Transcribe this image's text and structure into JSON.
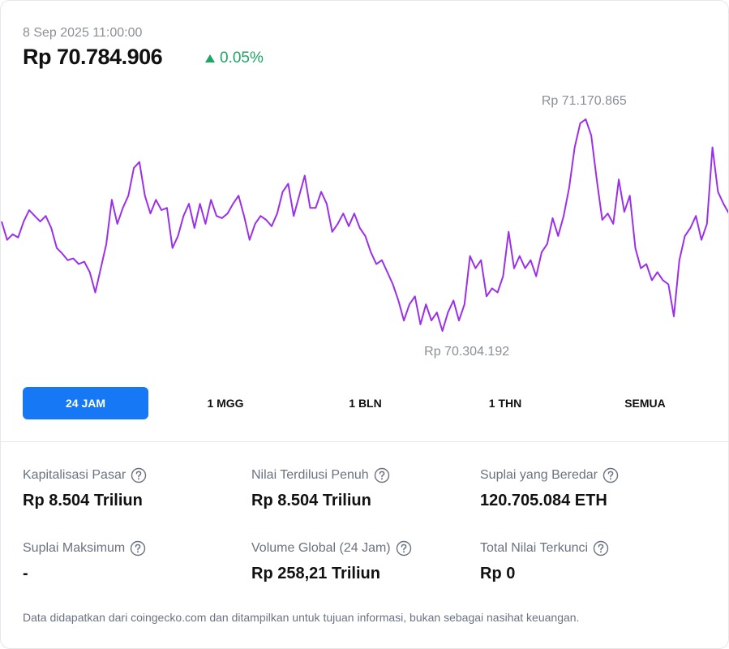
{
  "header": {
    "timestamp": "8 Sep 2025 11:00:00",
    "price": "Rp 70.784.906",
    "change": "0.05%"
  },
  "chart_data": {
    "type": "line",
    "color": "#9b30ea",
    "max_label": "Rp 71.170.865",
    "min_label": "Rp 70.304.192",
    "values": [
      70752000,
      70677000,
      70700000,
      70687000,
      70752000,
      70799000,
      70775000,
      70752000,
      70775000,
      70726000,
      70644000,
      70621000,
      70594000,
      70601000,
      70578000,
      70588000,
      70545000,
      70462000,
      70561000,
      70660000,
      70841000,
      70743000,
      70808000,
      70858000,
      70972000,
      70996000,
      70858000,
      70785000,
      70841000,
      70799000,
      70808000,
      70644000,
      70693000,
      70775000,
      70825000,
      70726000,
      70825000,
      70743000,
      70841000,
      70775000,
      70766000,
      70785000,
      70825000,
      70858000,
      70775000,
      70677000,
      70743000,
      70775000,
      70759000,
      70733000,
      70785000,
      70874000,
      70907000,
      70775000,
      70858000,
      70940000,
      70808000,
      70808000,
      70874000,
      70825000,
      70710000,
      70743000,
      70785000,
      70733000,
      70785000,
      70726000,
      70693000,
      70627000,
      70578000,
      70594000,
      70545000,
      70495000,
      70429000,
      70347000,
      70413000,
      70446000,
      70331000,
      70413000,
      70347000,
      70380000,
      70304192,
      70380000,
      70429000,
      70347000,
      70413000,
      70611000,
      70561000,
      70594000,
      70446000,
      70479000,
      70462000,
      70528000,
      70710000,
      70561000,
      70611000,
      70561000,
      70594000,
      70528000,
      70627000,
      70660000,
      70766000,
      70693000,
      70775000,
      70891000,
      71056000,
      71154000,
      71170865,
      71105000,
      70924000,
      70759000,
      70785000,
      70743000,
      70924000,
      70792000,
      70858000,
      70644000,
      70561000,
      70578000,
      70512000,
      70545000,
      70512000,
      70495000,
      70364000,
      70594000,
      70693000,
      70726000,
      70775000,
      70677000,
      70743000,
      71056000,
      70874000,
      70825000,
      70784906
    ]
  },
  "tabs": {
    "active": 0,
    "items": [
      "24 JAM",
      "1 MGG",
      "1 BLN",
      "1 THN",
      "SEMUA"
    ]
  },
  "stats": [
    {
      "label": "Kapitalisasi Pasar",
      "value": "Rp 8.504 Triliun"
    },
    {
      "label": "Nilai Terdilusi Penuh",
      "value": "Rp 8.504 Triliun"
    },
    {
      "label": "Suplai yang Beredar",
      "value": "120.705.084 ETH"
    },
    {
      "label": "Suplai Maksimum",
      "value": "-"
    },
    {
      "label": "Volume Global (24 Jam)",
      "value": "Rp 258,21 Triliun"
    },
    {
      "label": "Total Nilai Terkunci",
      "value": "Rp 0"
    }
  ],
  "footer": "Data didapatkan dari coingecko.com dan ditampilkan untuk tujuan informasi, bukan sebagai nasihat keuangan."
}
